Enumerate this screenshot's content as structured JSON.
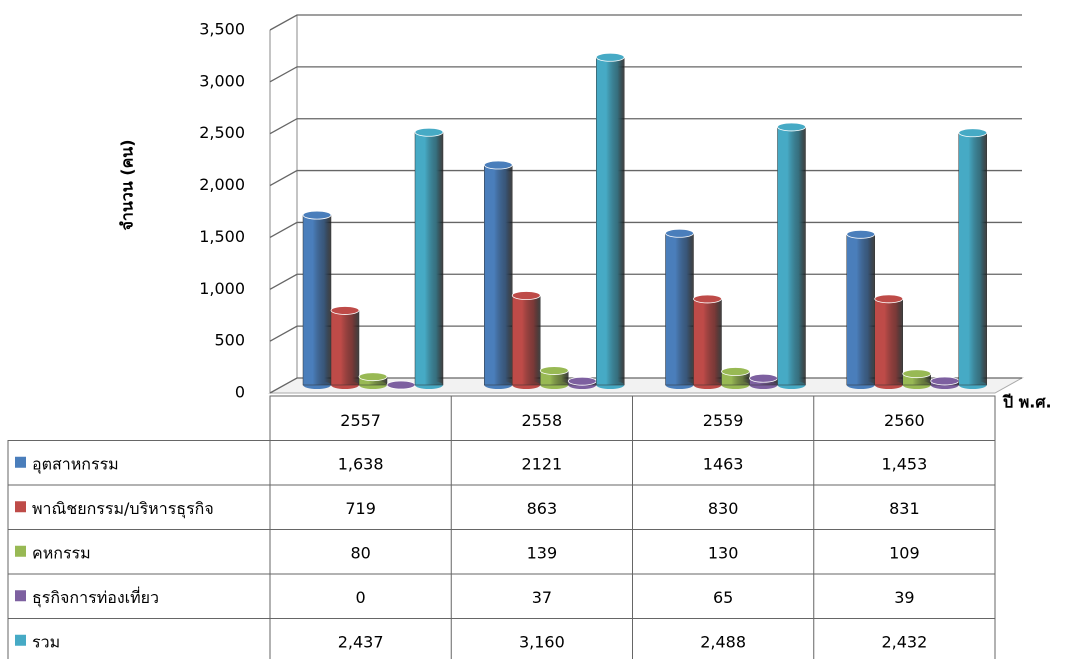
{
  "chart_data": {
    "type": "bar3d_table",
    "y_axis_label": "จำนวน (คน)",
    "x_axis_label": "ปี พ.ศ.",
    "categories": [
      "2557",
      "2558",
      "2559",
      "2560"
    ],
    "series": [
      {
        "name": "อุตสาหกรรม",
        "color": "#4a7ebb",
        "values": [
          1638,
          2121,
          1463,
          1453
        ],
        "value_labels": [
          "1,638",
          "2121",
          "1463",
          "1,453"
        ]
      },
      {
        "name": "พาณิชยกรรม/บริหารธุรกิจ",
        "color": "#be4b48",
        "values": [
          719,
          863,
          830,
          831
        ]
      },
      {
        "name": "คหกรรม",
        "color": "#98b954",
        "values": [
          80,
          139,
          130,
          109
        ]
      },
      {
        "name": "ธุรกิจการท่องเที่ยว",
        "color": "#7d60a0",
        "values": [
          0,
          37,
          65,
          39
        ]
      },
      {
        "name": "รวม",
        "color": "#46aac5",
        "values": [
          2437,
          3160,
          2488,
          2432
        ],
        "value_labels": [
          "2,437",
          "3,160",
          "2,488",
          "2,432"
        ]
      }
    ],
    "ylim": [
      0,
      3500
    ],
    "yticks": [
      0,
      500,
      {
        "value": 1000,
        "label": "1,000"
      },
      {
        "value": 1500,
        "label": "1,500"
      },
      {
        "value": 2000,
        "label": "2,000"
      },
      {
        "value": 2500,
        "label": "2,500"
      },
      {
        "value": 3000,
        "label": "3,000"
      },
      {
        "value": 3500,
        "label": "3,500"
      }
    ],
    "grid": true
  }
}
